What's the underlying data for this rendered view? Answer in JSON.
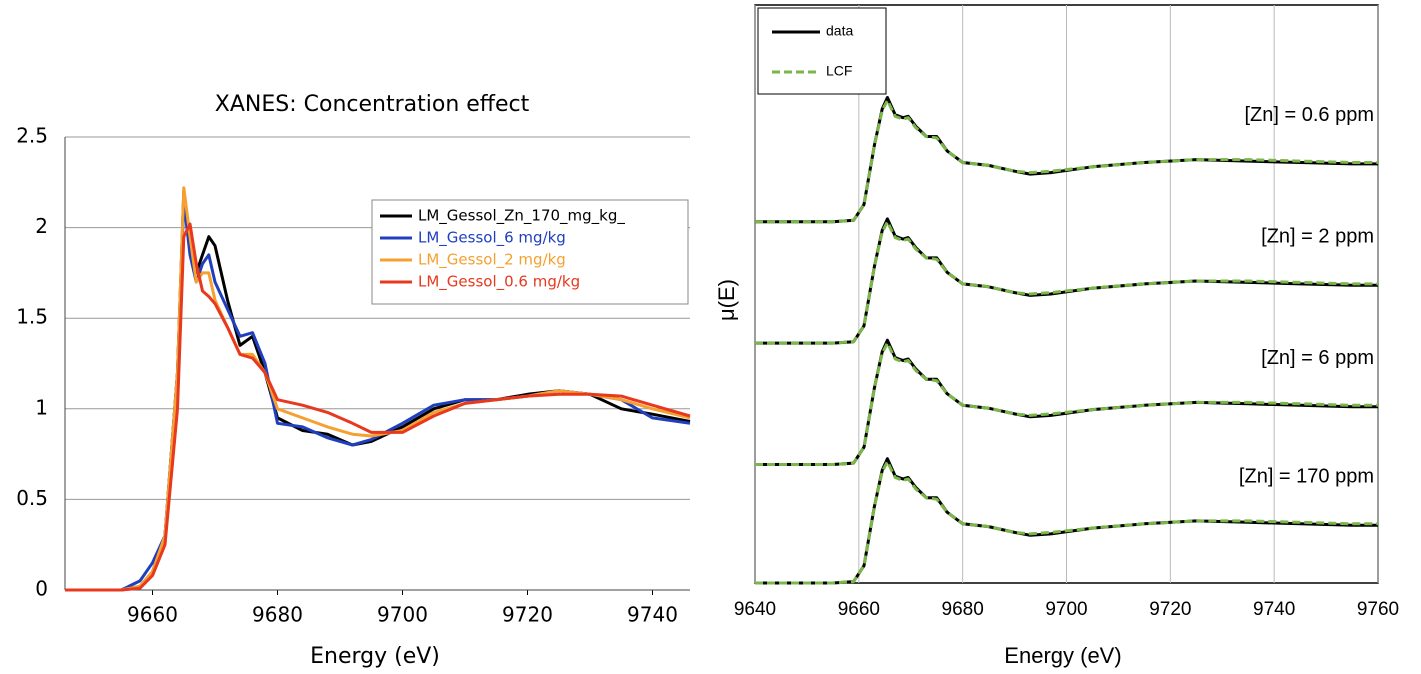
{
  "chart_data": [
    {
      "type": "line",
      "title": "XANES: Concentration effect",
      "x_label": "Energy (eV)",
      "x": [
        9646,
        9655,
        9658,
        9660,
        9662,
        9664,
        9665,
        9666,
        9667,
        9668,
        9669,
        9670,
        9672,
        9674,
        9676,
        9678,
        9680,
        9684,
        9688,
        9692,
        9695,
        9700,
        9705,
        9710,
        9715,
        9720,
        9725,
        9730,
        9735,
        9740,
        9746
      ],
      "series": [
        {
          "name": "LM_Gessol_Zn_170_mg_kg_",
          "color": "#000000",
          "values": [
            0,
            0,
            0.02,
            0.1,
            0.3,
            1.2,
            2.2,
            1.9,
            1.75,
            1.85,
            1.95,
            1.9,
            1.6,
            1.35,
            1.4,
            1.2,
            0.95,
            0.88,
            0.86,
            0.8,
            0.82,
            0.9,
            1.0,
            1.05,
            1.05,
            1.08,
            1.1,
            1.08,
            1.0,
            0.97,
            0.93
          ]
        },
        {
          "name": "LM_Gessol_6 mg/kg",
          "color": "#1f3fbf",
          "values": [
            0,
            0,
            0.05,
            0.15,
            0.3,
            1.2,
            2.15,
            1.85,
            1.7,
            1.8,
            1.85,
            1.7,
            1.55,
            1.4,
            1.42,
            1.25,
            0.92,
            0.9,
            0.84,
            0.8,
            0.83,
            0.92,
            1.02,
            1.05,
            1.05,
            1.07,
            1.1,
            1.08,
            1.05,
            0.95,
            0.92
          ]
        },
        {
          "name": "LM_Gessol_2 mg/kg",
          "color": "#f5a030",
          "values": [
            0,
            0,
            0.02,
            0.1,
            0.3,
            1.2,
            2.22,
            1.95,
            1.7,
            1.75,
            1.75,
            1.6,
            1.45,
            1.3,
            1.3,
            1.2,
            1.0,
            0.95,
            0.9,
            0.86,
            0.85,
            0.88,
            0.98,
            1.03,
            1.05,
            1.07,
            1.1,
            1.08,
            1.05,
            1.0,
            0.95
          ]
        },
        {
          "name": "LM_Gessol_0.6 mg/kg",
          "color": "#e8381e",
          "values": [
            0,
            0,
            0.01,
            0.08,
            0.25,
            1.0,
            1.95,
            2.02,
            1.8,
            1.65,
            1.62,
            1.58,
            1.45,
            1.3,
            1.28,
            1.2,
            1.05,
            1.02,
            0.98,
            0.92,
            0.87,
            0.87,
            0.96,
            1.03,
            1.05,
            1.07,
            1.08,
            1.08,
            1.07,
            1.02,
            0.96
          ]
        }
      ],
      "xlim": [
        9646,
        9746
      ],
      "xticks": [
        9660,
        9680,
        9700,
        9720,
        9740
      ],
      "ylim": [
        0,
        2.5
      ],
      "yticks": [
        0,
        0.5,
        1,
        1.5,
        2,
        2.5
      ],
      "grid": "y",
      "legend": "upper right"
    },
    {
      "type": "line",
      "x_label": "Energy (eV)",
      "y_label": "μ(E)",
      "x": [
        9640,
        9655,
        9659,
        9661,
        9663,
        9664.5,
        9665.5,
        9667,
        9668.5,
        9669.5,
        9671,
        9673,
        9675,
        9677,
        9680,
        9685,
        9690,
        9693,
        9697,
        9705,
        9715,
        9725,
        9735,
        9745,
        9755,
        9760
      ],
      "series": [
        {
          "name": "data",
          "color": "#000000",
          "values": [
            [
              2.5,
              2.5,
              2.51,
              2.62,
              3.03,
              3.28,
              3.36,
              3.24,
              3.22,
              3.23,
              3.16,
              3.09,
              3.09,
              2.99,
              2.91,
              2.89,
              2.85,
              2.83,
              2.84,
              2.88,
              2.91,
              2.93,
              2.92,
              2.91,
              2.9,
              2.9
            ],
            [
              1.66,
              1.66,
              1.67,
              1.78,
              2.19,
              2.44,
              2.52,
              2.4,
              2.38,
              2.39,
              2.32,
              2.25,
              2.25,
              2.15,
              2.07,
              2.05,
              2.01,
              1.99,
              2.0,
              2.04,
              2.07,
              2.09,
              2.08,
              2.07,
              2.06,
              2.06
            ],
            [
              0.82,
              0.82,
              0.83,
              0.94,
              1.35,
              1.6,
              1.68,
              1.56,
              1.54,
              1.55,
              1.48,
              1.41,
              1.41,
              1.31,
              1.23,
              1.21,
              1.17,
              1.15,
              1.16,
              1.2,
              1.23,
              1.25,
              1.24,
              1.23,
              1.22,
              1.22
            ],
            [
              0,
              0,
              0.01,
              0.12,
              0.53,
              0.78,
              0.86,
              0.74,
              0.72,
              0.73,
              0.66,
              0.59,
              0.59,
              0.49,
              0.41,
              0.39,
              0.35,
              0.33,
              0.34,
              0.38,
              0.41,
              0.43,
              0.42,
              0.41,
              0.4,
              0.4
            ]
          ]
        },
        {
          "name": "LCF",
          "color": "#7ab648",
          "dashed": true,
          "values": [
            [
              2.5,
              2.5,
              2.51,
              2.62,
              3.03,
              3.27,
              3.34,
              3.23,
              3.21,
              3.22,
              3.15,
              3.09,
              3.08,
              2.99,
              2.91,
              2.89,
              2.85,
              2.84,
              2.85,
              2.88,
              2.91,
              2.93,
              2.93,
              2.92,
              2.91,
              2.91
            ],
            [
              1.66,
              1.66,
              1.67,
              1.78,
              2.19,
              2.43,
              2.5,
              2.39,
              2.37,
              2.38,
              2.31,
              2.25,
              2.24,
              2.15,
              2.07,
              2.05,
              2.01,
              2.0,
              2.01,
              2.04,
              2.07,
              2.09,
              2.09,
              2.08,
              2.07,
              2.07
            ],
            [
              0.82,
              0.82,
              0.83,
              0.94,
              1.35,
              1.59,
              1.66,
              1.55,
              1.53,
              1.54,
              1.47,
              1.41,
              1.4,
              1.31,
              1.23,
              1.21,
              1.17,
              1.16,
              1.17,
              1.2,
              1.23,
              1.25,
              1.25,
              1.24,
              1.23,
              1.23
            ],
            [
              0,
              0,
              0.01,
              0.12,
              0.53,
              0.77,
              0.84,
              0.73,
              0.71,
              0.72,
              0.65,
              0.59,
              0.58,
              0.49,
              0.41,
              0.39,
              0.35,
              0.34,
              0.35,
              0.38,
              0.41,
              0.43,
              0.43,
              0.42,
              0.41,
              0.41
            ]
          ]
        }
      ],
      "annotations": [
        "[Zn] = 0.6 ppm",
        "[Zn] = 2 ppm",
        "[Zn] = 6 ppm",
        "[Zn] = 170 ppm"
      ],
      "xlim": [
        9640,
        9760
      ],
      "xticks": [
        9640,
        9660,
        9680,
        9700,
        9720,
        9740,
        9760
      ],
      "ylim": [
        0,
        4
      ],
      "grid": "x",
      "legend": "upper left"
    }
  ]
}
